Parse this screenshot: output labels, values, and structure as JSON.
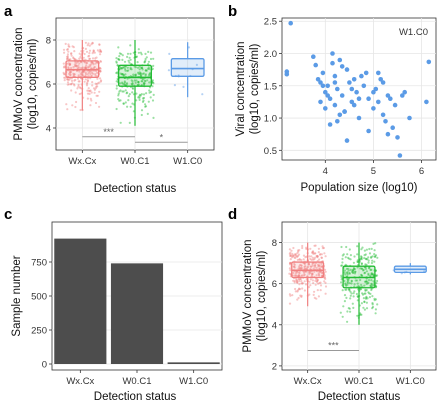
{
  "colors": {
    "wx": "#f08080",
    "w0": "#22bb33",
    "w1": "#5b9be6",
    "bar": "#4d4d4d"
  },
  "chart_data": [
    {
      "panel": "a",
      "type": "box",
      "xlabel": "Detection status",
      "ylabel_line1": "PMMoV concentration",
      "ylabel_line2": "(log10, copies/ml)",
      "ylim": [
        3,
        9
      ],
      "yticks": [
        4,
        6,
        8
      ],
      "grid": true,
      "categories": [
        "Wx.Cx",
        "W0.C1",
        "W1.C0"
      ],
      "boxes": [
        {
          "name": "Wx.Cx",
          "min": 4.8,
          "q1": 6.3,
          "median": 6.65,
          "q3": 7.05,
          "max": 8.0,
          "n_points": 320
        },
        {
          "name": "W0.C1",
          "min": 4.1,
          "q1": 5.9,
          "median": 6.3,
          "q3": 6.85,
          "max": 8.0,
          "n_points": 260
        },
        {
          "name": "W1.C0",
          "min": 5.4,
          "q1": 6.35,
          "median": 6.7,
          "q3": 7.15,
          "max": 7.9,
          "n_points": 12
        }
      ],
      "significance": [
        {
          "from": "Wx.Cx",
          "to": "W0.C1",
          "label": "***",
          "y": 3.6
        },
        {
          "from": "W0.C1",
          "to": "W1.C0",
          "label": "*",
          "y": 3.35
        }
      ]
    },
    {
      "panel": "b",
      "type": "scatter",
      "xlabel": "Population size (log10)",
      "ylabel_line1": "Viral concentration",
      "ylabel_line2": "(log10, copies/ml)",
      "xlim": [
        3.1,
        6.3
      ],
      "ylim": [
        0.35,
        2.55
      ],
      "xticks": [
        4,
        5,
        6
      ],
      "yticks": [
        0.5,
        1.0,
        1.5,
        2.0,
        2.5
      ],
      "ytick_labels": [
        "0.5",
        "1.0",
        "1.5",
        "2.0",
        "2.5"
      ],
      "annotation": "W1.C0",
      "x": [
        3.28,
        3.2,
        3.2,
        3.8,
        3.85,
        3.9,
        3.95,
        4.0,
        4.05,
        4.1,
        4.15,
        4.2,
        4.2,
        4.25,
        4.3,
        4.35,
        4.4,
        4.45,
        4.5,
        4.55,
        4.6,
        4.65,
        4.7,
        4.8,
        4.9,
        5.0,
        5.05,
        5.1,
        5.15,
        5.2,
        5.25,
        5.3,
        5.35,
        5.4,
        5.45,
        5.6,
        5.65,
        5.75,
        6.15,
        3.75,
        3.9,
        4.0,
        4.1,
        4.2,
        4.3,
        4.45,
        4.6,
        4.75,
        4.9,
        5.0,
        5.1,
        5.2,
        5.3,
        5.55,
        4.15,
        4.35,
        4.55,
        4.05,
        4.25,
        4.4,
        4.7,
        4.85,
        3.95,
        5.5,
        6.1
      ],
      "y": [
        2.47,
        1.72,
        1.68,
        1.82,
        1.6,
        1.55,
        1.7,
        1.4,
        1.5,
        1.3,
        1.85,
        1.65,
        1.2,
        1.45,
        1.9,
        1.35,
        1.1,
        1.75,
        1.55,
        1.25,
        1.6,
        1.4,
        1.0,
        1.5,
        1.3,
        1.15,
        1.45,
        1.7,
        1.6,
        1.05,
        0.95,
        1.35,
        1.3,
        0.85,
        1.2,
        1.35,
        1.4,
        1.0,
        1.87,
        1.95,
        1.25,
        1.15,
        0.9,
        1.55,
        1.05,
        0.65,
        1.2,
        1.65,
        0.8,
        1.4,
        1.25,
        1.55,
        0.75,
        0.42,
        2.0,
        1.8,
        1.45,
        1.35,
        0.95,
        1.1,
        1.3,
        1.7,
        1.5,
        0.7,
        1.25
      ]
    },
    {
      "panel": "c",
      "type": "bar",
      "xlabel": "Detection status",
      "ylabel": "Sample number",
      "ylim": [
        0,
        1000
      ],
      "yticks": [
        0,
        250,
        500,
        750
      ],
      "categories": [
        "Wx.Cx",
        "W0.C1",
        "W1.C0"
      ],
      "values": [
        922,
        740,
        12
      ]
    },
    {
      "panel": "d",
      "type": "box",
      "xlabel": "Detection status",
      "ylabel_line1": "PMMoV concentration",
      "ylabel_line2": "(log10, copies/ml)",
      "ylim": [
        1.8,
        9
      ],
      "yticks": [
        2,
        4,
        6,
        8
      ],
      "grid": true,
      "categories": [
        "Wx.Cx",
        "W0.C1",
        "W1.C0"
      ],
      "boxes": [
        {
          "name": "Wx.Cx",
          "min": 4.9,
          "q1": 6.3,
          "median": 6.65,
          "q3": 7.05,
          "max": 8.0,
          "n_points": 320
        },
        {
          "name": "W0.C1",
          "min": 4.0,
          "q1": 5.8,
          "median": 6.3,
          "q3": 6.85,
          "max": 8.0,
          "n_points": 280
        },
        {
          "name": "W1.C0",
          "min": 6.45,
          "q1": 6.55,
          "median": 6.7,
          "q3": 6.85,
          "max": 7.0,
          "n_points": 5
        }
      ],
      "significance": [
        {
          "from": "Wx.Cx",
          "to": "W0.C1",
          "label": "***",
          "y": 2.75
        }
      ]
    }
  ]
}
